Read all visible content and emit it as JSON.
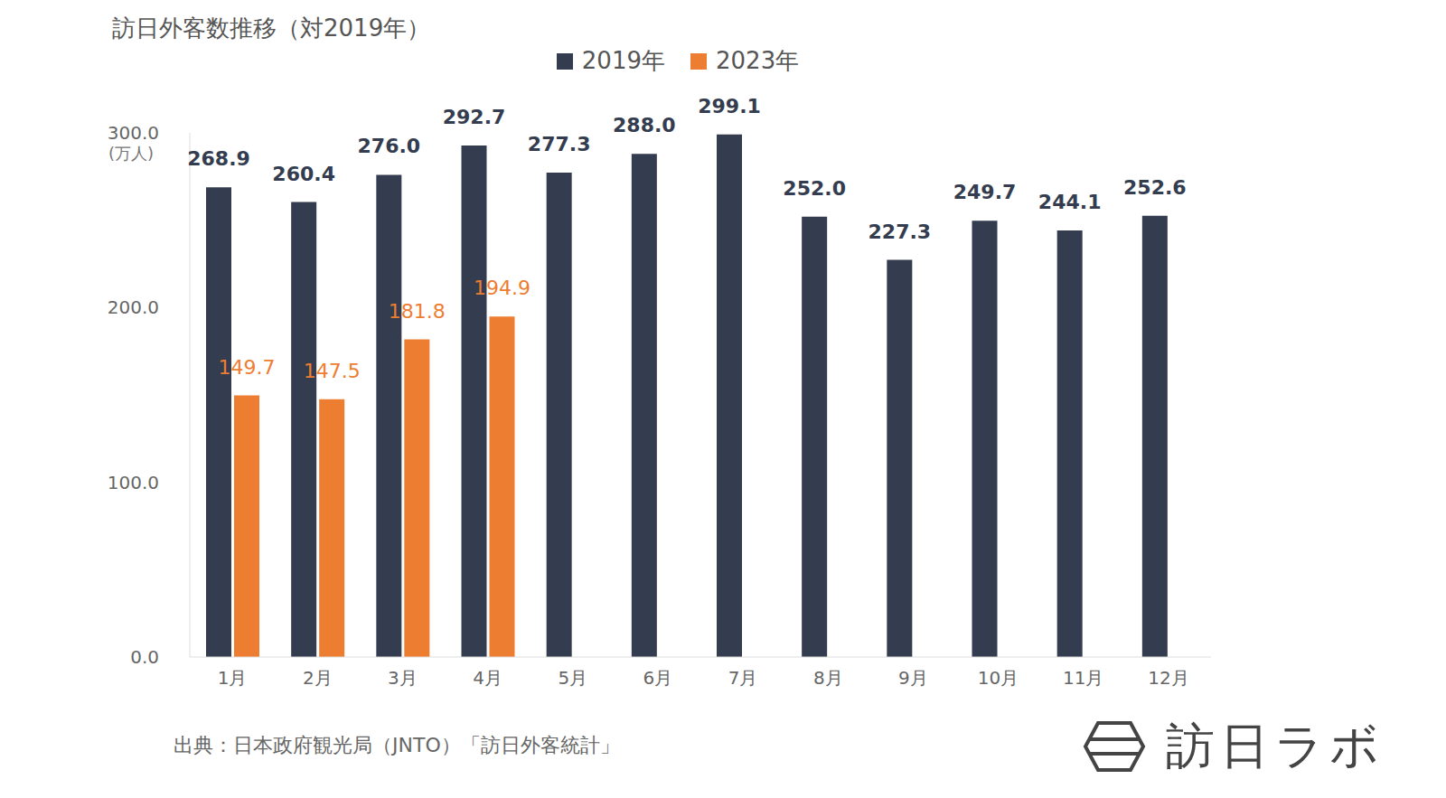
{
  "chart_data": {
    "type": "bar",
    "title": "訪日外客数推移（対2019年）",
    "ylabel": "(万人)",
    "source": "出典：日本政府観光局（JNTO）「訪日外客統計」",
    "logo": "訪日ラボ",
    "categories": [
      "1月",
      "2月",
      "3月",
      "4月",
      "5月",
      "6月",
      "7月",
      "8月",
      "9月",
      "10月",
      "11月",
      "12月"
    ],
    "series": [
      {
        "name": "2019年",
        "color": "#333d4f",
        "values": [
          268.9,
          260.4,
          276.0,
          292.7,
          277.3,
          288.0,
          299.1,
          252.0,
          227.3,
          249.7,
          244.1,
          252.6
        ],
        "value_labels": [
          "268.9",
          "260.4",
          "276.0",
          "292.7",
          "277.3",
          "288.0",
          "299.1",
          "252.0",
          "227.3",
          "249.7",
          "244.1",
          "252.6"
        ]
      },
      {
        "name": "2023年",
        "color": "#ed7d31",
        "values": [
          149.7,
          147.5,
          181.8,
          194.9,
          null,
          null,
          null,
          null,
          null,
          null,
          null,
          null
        ],
        "value_labels": [
          "149.7",
          "147.5",
          "181.8",
          "194.9",
          null,
          null,
          null,
          null,
          null,
          null,
          null,
          null
        ]
      }
    ],
    "ylim": [
      0,
      300
    ],
    "yticks": [
      {
        "value": 0,
        "label": "0.0"
      },
      {
        "value": 100,
        "label": "100.0"
      },
      {
        "value": 200,
        "label": "200.0"
      },
      {
        "value": 300,
        "label": "300.0"
      }
    ],
    "grid": false,
    "legend": "top",
    "data_labels": true
  }
}
